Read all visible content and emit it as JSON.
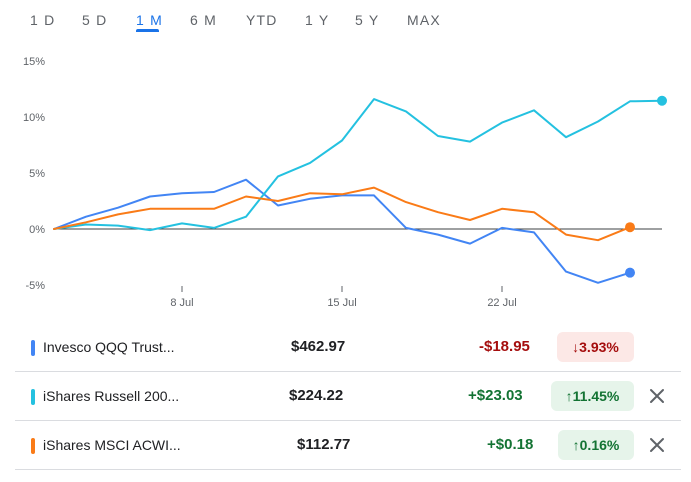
{
  "tabs": [
    {
      "label": "1 D",
      "active": false
    },
    {
      "label": "5 D",
      "active": false
    },
    {
      "label": "1 M",
      "active": true
    },
    {
      "label": "6 M",
      "active": false
    },
    {
      "label": "YTD",
      "active": false
    },
    {
      "label": "1 Y",
      "active": false
    },
    {
      "label": "5 Y",
      "active": false
    },
    {
      "label": "MAX",
      "active": false
    }
  ],
  "chart_data": {
    "type": "line",
    "x": [
      "Jul 1",
      "Jul 2",
      "Jul 3",
      "Jul 5",
      "Jul 8",
      "Jul 9",
      "Jul 10",
      "Jul 11",
      "Jul 12",
      "Jul 15",
      "Jul 16",
      "Jul 17",
      "Jul 18",
      "Jul 19",
      "Jul 22",
      "Jul 23",
      "Jul 24",
      "Jul 25",
      "Jul 26",
      "Jul 29"
    ],
    "x_tick_labels": [
      "8 Jul",
      "15 Jul",
      "22 Jul"
    ],
    "y_tick_labels": [
      "15%",
      "10%",
      "5%",
      "0%",
      "-5%"
    ],
    "ylim": [
      -5,
      15
    ],
    "y_unit": "%",
    "series": [
      {
        "name": "Invesco QQQ Trust...",
        "color": "#4285f4",
        "values": [
          0,
          1.1,
          1.9,
          2.9,
          3.2,
          3.3,
          4.4,
          2.1,
          2.7,
          3.0,
          3.0,
          0.1,
          -0.5,
          -1.3,
          0.1,
          -0.3,
          -3.8,
          -4.8,
          -3.9,
          null
        ]
      },
      {
        "name": "iShares Russell 200...",
        "color": "#24c1e0",
        "values": [
          0,
          0.4,
          0.3,
          -0.1,
          0.5,
          0.1,
          1.1,
          4.7,
          5.9,
          7.9,
          11.6,
          10.5,
          8.3,
          7.8,
          9.5,
          10.6,
          8.2,
          9.6,
          11.4,
          11.45
        ]
      },
      {
        "name": "iShares MSCI ACWI...",
        "color": "#fa7b17",
        "values": [
          0,
          0.6,
          1.3,
          1.8,
          1.8,
          1.8,
          2.9,
          2.5,
          3.2,
          3.1,
          3.7,
          2.4,
          1.5,
          0.8,
          1.8,
          1.5,
          -0.5,
          -1.0,
          0.16,
          null
        ]
      }
    ]
  },
  "holdings": [
    {
      "name": "Invesco QQQ Trust...",
      "color": "#4285f4",
      "price": "$462.97",
      "change": "-$18.95",
      "pct_arrow": "↓",
      "pct": "3.93%",
      "direction": "neg",
      "removable": false
    },
    {
      "name": "iShares Russell 200...",
      "color": "#24c1e0",
      "price": "$224.22",
      "change": "+$23.03",
      "pct_arrow": "↑",
      "pct": "11.45%",
      "direction": "pos",
      "removable": true
    },
    {
      "name": "iShares MSCI ACWI...",
      "color": "#fa7b17",
      "price": "$112.77",
      "change": "+$0.18",
      "pct_arrow": "↑",
      "pct": "0.16%",
      "direction": "pos",
      "removable": true
    }
  ]
}
